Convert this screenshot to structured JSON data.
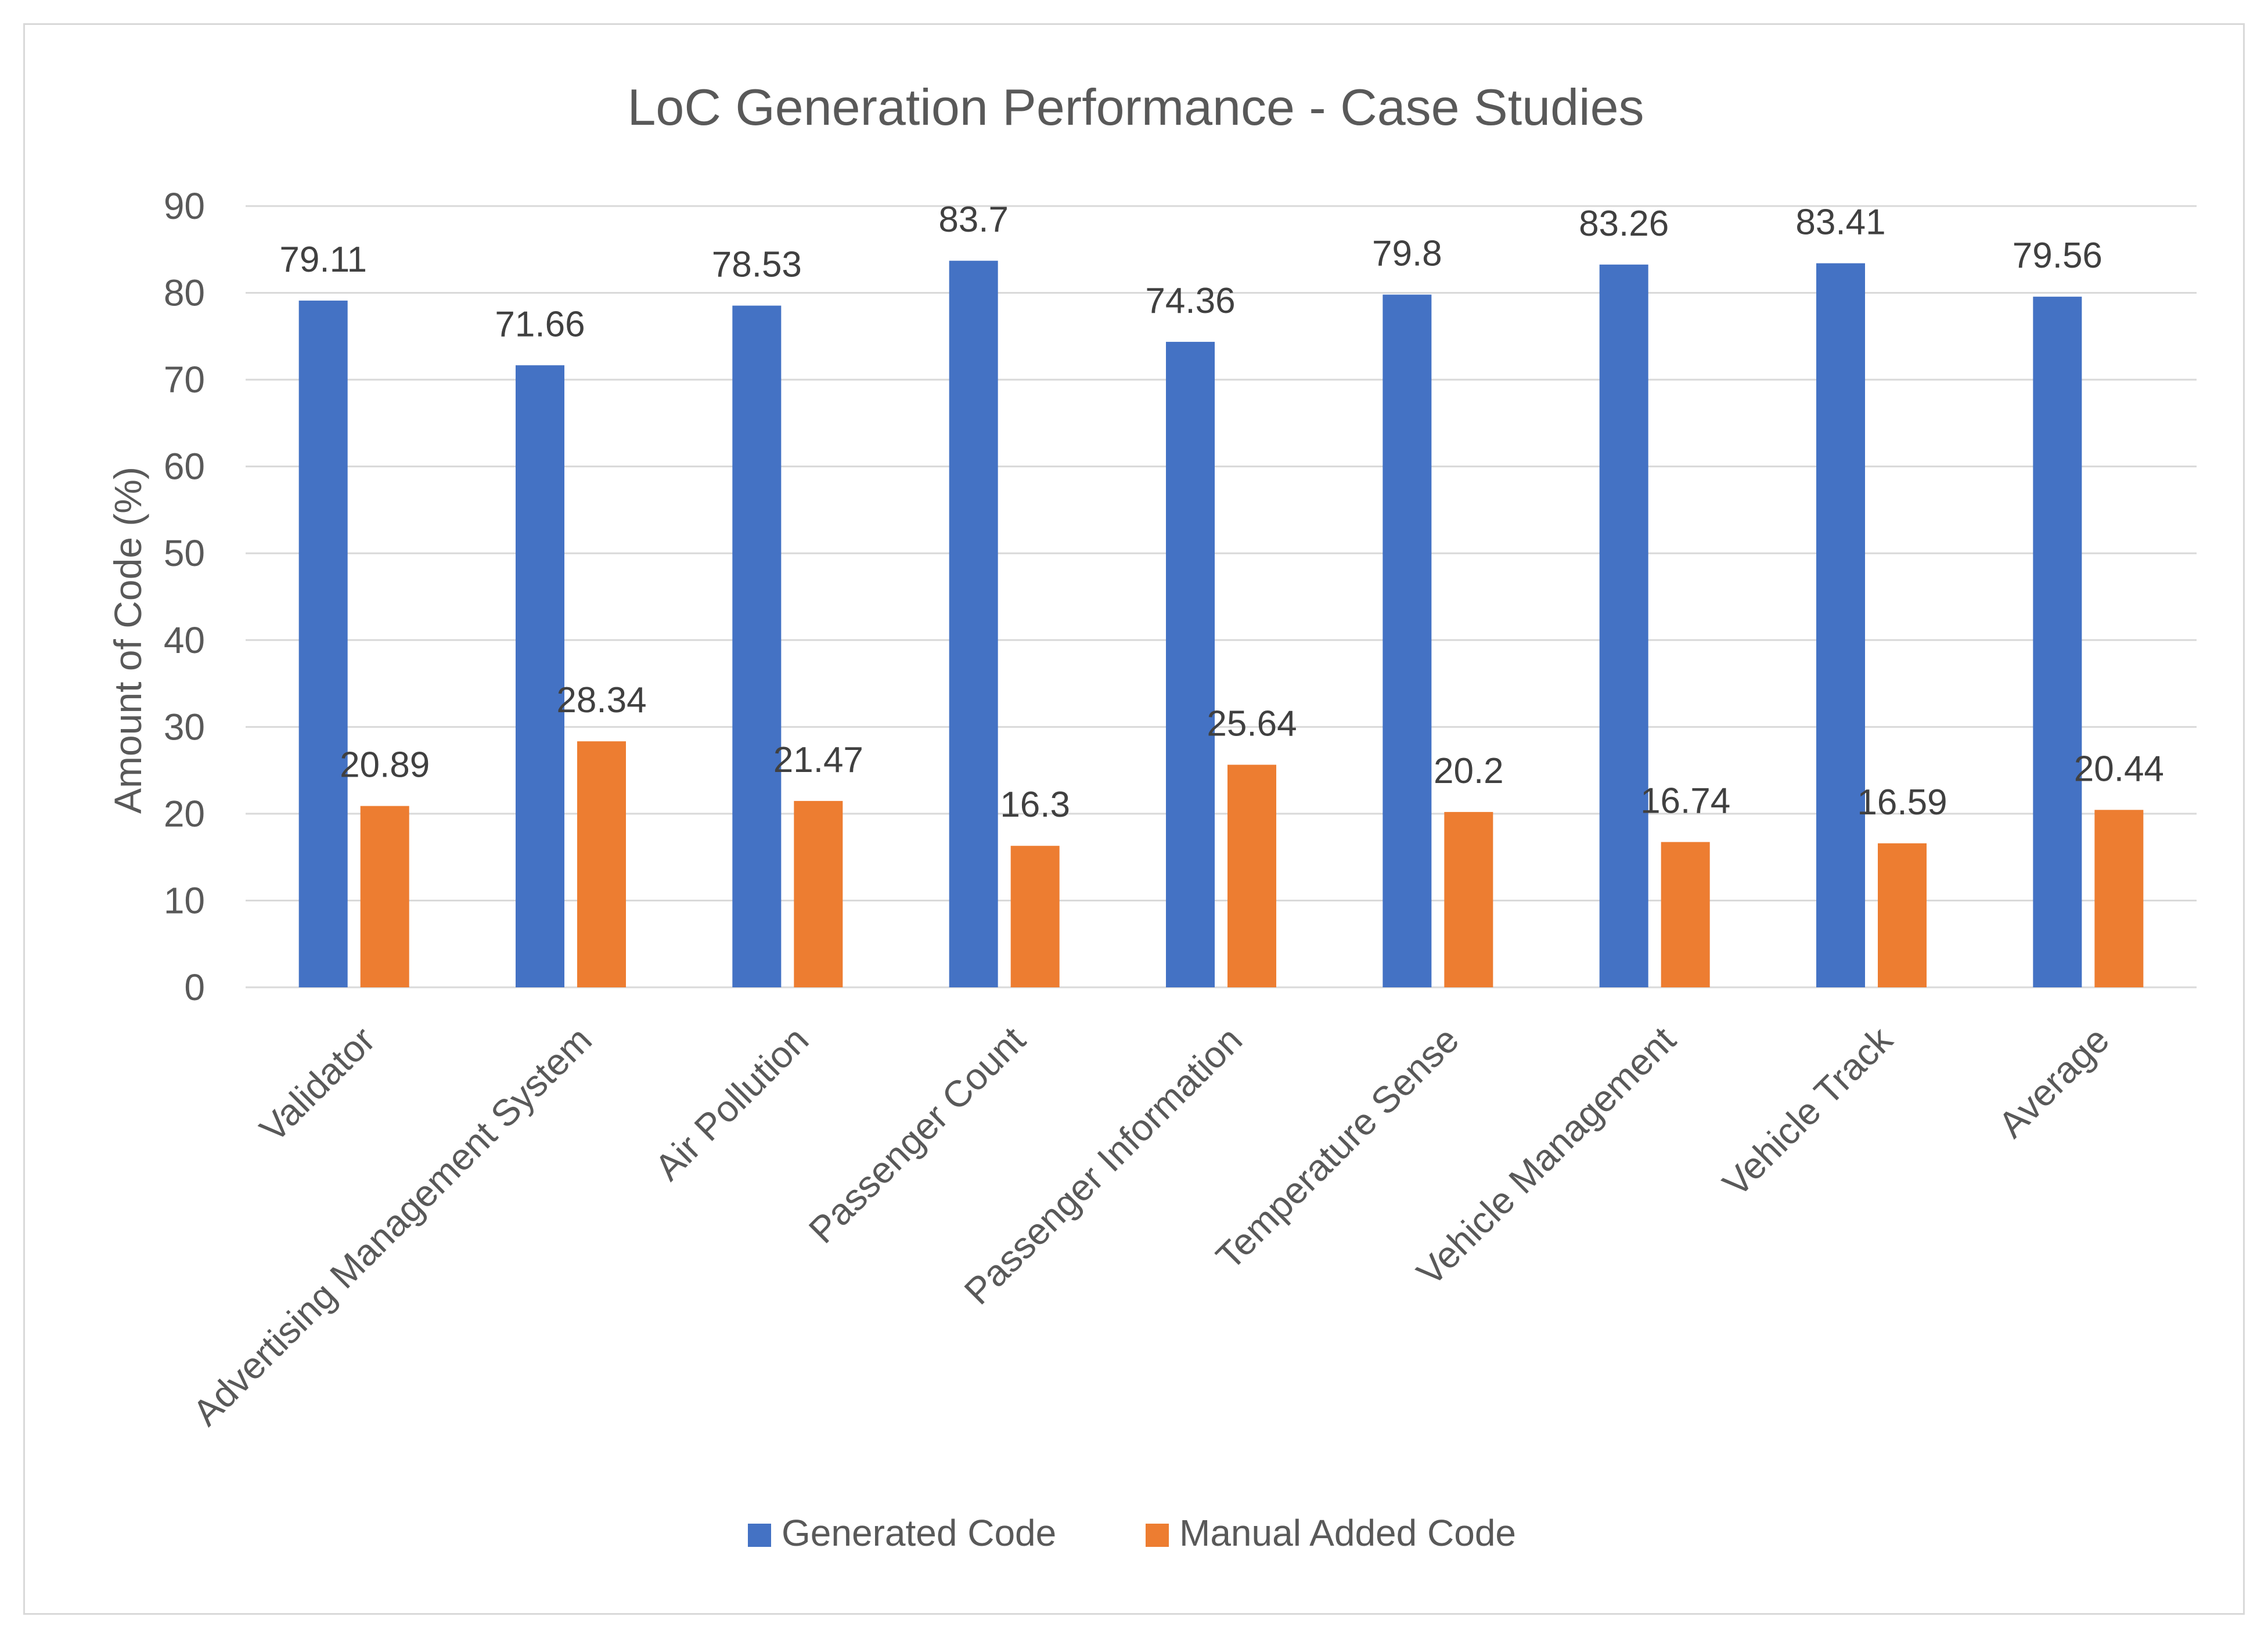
{
  "chart_data": {
    "type": "bar",
    "title": "LoC Generation Performance - Case Studies",
    "xlabel": "",
    "ylabel": "Amount of Code (%)",
    "ylim": [
      0,
      90
    ],
    "yticks": [
      0,
      10,
      20,
      30,
      40,
      50,
      60,
      70,
      80,
      90
    ],
    "grid": true,
    "legend_position": "bottom",
    "categories": [
      "Validator",
      "Advertising Management System",
      "Air Pollution",
      "Passenger Count",
      "Passenger Information",
      "Temperature Sense",
      "Vehicle Management",
      "Vehicle Track",
      "Average"
    ],
    "series": [
      {
        "name": "Generated Code",
        "color": "#4472c4",
        "values": [
          79.11,
          71.66,
          78.53,
          83.7,
          74.36,
          79.8,
          83.26,
          83.41,
          79.56
        ]
      },
      {
        "name": "Manual Added Code",
        "color": "#ed7d31",
        "values": [
          20.89,
          28.34,
          21.47,
          16.3,
          25.64,
          20.2,
          16.74,
          16.59,
          20.44
        ]
      }
    ]
  }
}
